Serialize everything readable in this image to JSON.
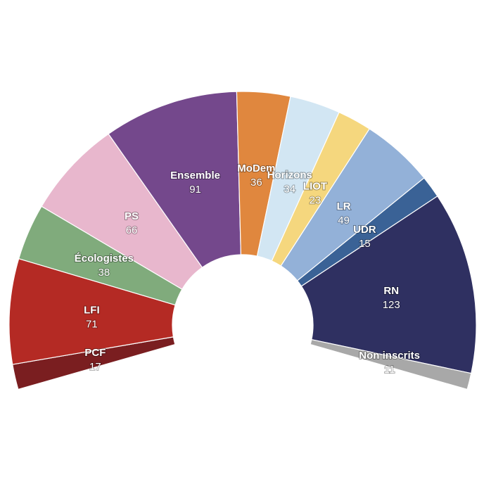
{
  "chart_data": {
    "type": "pie",
    "variant": "semicircle-parliament",
    "title": "",
    "categories": [
      "PCF",
      "LFI",
      "Écologistes",
      "PS",
      "Ensemble",
      "MoDem",
      "Horizons",
      "LIOT",
      "LR",
      "UDR",
      "RN",
      "Non inscrits"
    ],
    "values": [
      17,
      71,
      38,
      66,
      91,
      36,
      34,
      23,
      49,
      15,
      123,
      11
    ],
    "colors": [
      "#7a1e20",
      "#b42a24",
      "#80ab7c",
      "#e8b7cd",
      "#74488c",
      "#e0873e",
      "#d2e6f3",
      "#f5d77e",
      "#93b1d8",
      "#3a6296",
      "#2f3061",
      "#a8a8a8"
    ],
    "legend": "none"
  }
}
